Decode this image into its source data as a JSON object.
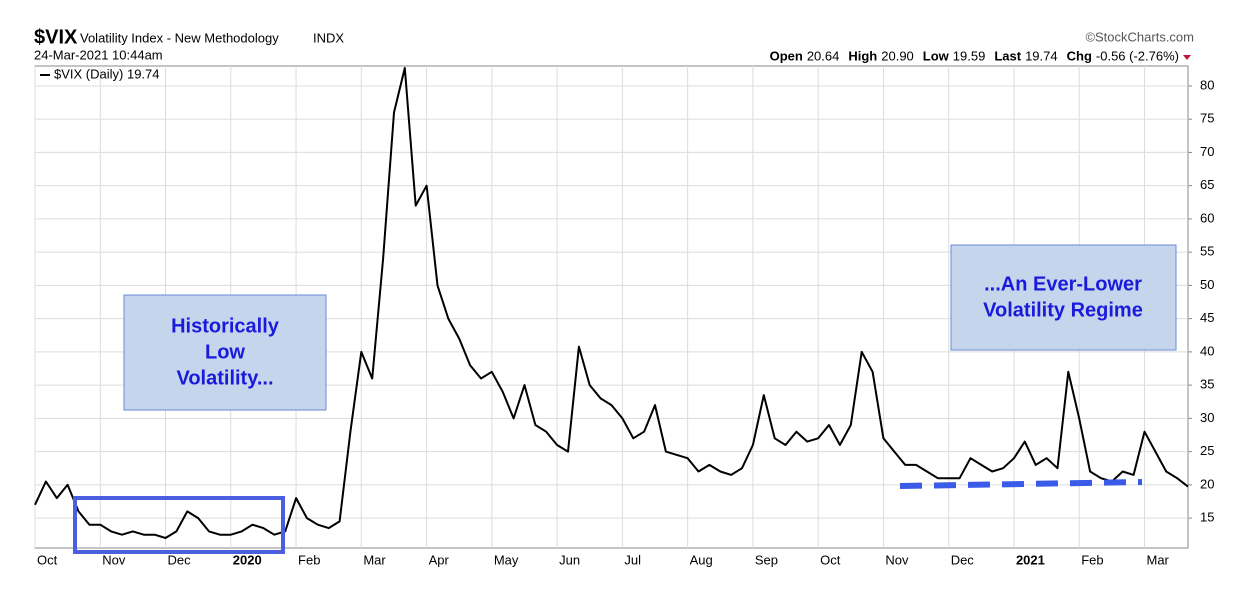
{
  "chart_data": {
    "type": "line",
    "symbol": "$VIX",
    "title": "Volatility Index - New Methodology",
    "exchange": "INDX",
    "timestamp": "24-Mar-2021 10:44am",
    "source": "©StockCharts.com",
    "quote": [
      {
        "label": "Open",
        "value": "20.64"
      },
      {
        "label": "High",
        "value": "20.90"
      },
      {
        "label": "Low",
        "value": "19.59"
      },
      {
        "label": "Last",
        "value": "19.74"
      },
      {
        "label": "Chg",
        "value": "-0.56 (-2.76%)"
      }
    ],
    "annotations": [
      [
        "Historically",
        "Low",
        "Volatility..."
      ],
      [
        "...An Ever-Lower",
        "Volatility Regime"
      ]
    ],
    "categories": [
      "Oct",
      null,
      null,
      null,
      null,
      null,
      "Nov",
      null,
      null,
      null,
      null,
      null,
      "Dec",
      null,
      null,
      null,
      null,
      null,
      "2020",
      null,
      null,
      null,
      null,
      null,
      "Feb",
      null,
      null,
      null,
      null,
      null,
      "Mar",
      null,
      null,
      null,
      null,
      null,
      "Apr",
      null,
      null,
      null,
      null,
      null,
      "May",
      null,
      null,
      null,
      null,
      null,
      "Jun",
      null,
      null,
      null,
      null,
      null,
      "Jul",
      null,
      null,
      null,
      null,
      null,
      "Aug",
      null,
      null,
      null,
      null,
      null,
      "Sep",
      null,
      null,
      null,
      null,
      null,
      "Oct",
      null,
      null,
      null,
      null,
      null,
      "Nov",
      null,
      null,
      null,
      null,
      null,
      "Dec",
      null,
      null,
      null,
      null,
      null,
      "2021",
      null,
      null,
      null,
      null,
      null,
      "Feb",
      null,
      null,
      null,
      null,
      null,
      "Mar",
      null,
      null,
      null,
      null
    ],
    "series": [
      {
        "name": "$VIX (Daily) 19.74",
        "color": "#000000",
        "values": [
          17,
          20.5,
          18,
          20,
          16,
          14,
          14,
          13,
          12.5,
          13,
          12.5,
          12.5,
          12,
          13,
          16,
          15,
          13,
          12.5,
          12.5,
          13,
          14,
          13.5,
          12.5,
          13,
          18,
          15,
          14,
          13.5,
          14.5,
          28,
          40,
          36,
          54,
          76,
          82.7,
          62,
          65,
          50,
          45,
          42,
          38,
          36,
          37,
          34,
          30,
          35,
          29,
          28,
          26,
          25,
          40.8,
          35,
          33,
          32,
          30,
          27,
          28,
          32,
          25,
          24.5,
          24,
          22,
          23,
          22,
          21.5,
          22.5,
          26,
          33.5,
          27,
          26,
          28,
          26.5,
          27,
          29,
          26,
          29,
          40,
          37,
          27,
          25,
          23,
          23,
          22,
          21,
          21,
          21,
          24,
          23,
          22,
          22.5,
          24,
          26.5,
          23,
          24,
          22.5,
          37,
          30,
          22,
          21,
          20.5,
          22,
          21.5,
          28,
          25,
          22,
          21,
          19.74
        ]
      }
    ],
    "ylim": [
      10.5,
      83
    ],
    "yticks": [
      15,
      20,
      25,
      30,
      35,
      40,
      45,
      50,
      55,
      60,
      65,
      70,
      75,
      80
    ],
    "grid": true
  }
}
